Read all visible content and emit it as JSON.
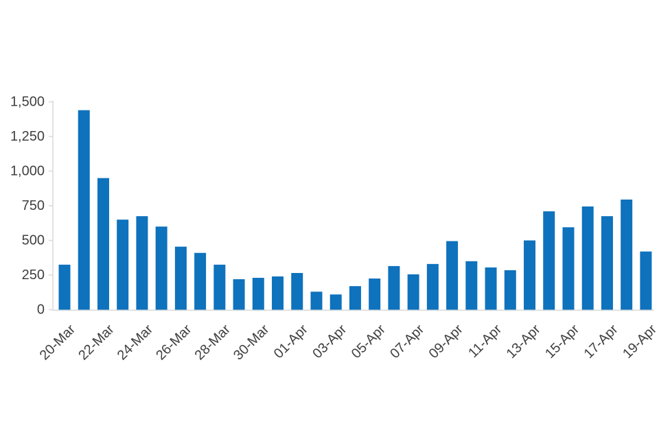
{
  "page": {
    "background_color": "#ffffff"
  },
  "chart_data": {
    "type": "bar",
    "title": "",
    "xlabel": "",
    "ylabel": "",
    "legend_position": "none",
    "grid": false,
    "categories": [
      "20-Mar",
      "21-Mar",
      "22-Mar",
      "23-Mar",
      "24-Mar",
      "25-Mar",
      "26-Mar",
      "27-Mar",
      "28-Mar",
      "29-Mar",
      "30-Mar",
      "31-Mar",
      "01-Apr",
      "02-Apr",
      "03-Apr",
      "04-Apr",
      "05-Apr",
      "06-Apr",
      "07-Apr",
      "08-Apr",
      "09-Apr",
      "10-Apr",
      "11-Apr",
      "12-Apr",
      "13-Apr",
      "14-Apr",
      "15-Apr",
      "16-Apr",
      "17-Apr",
      "18-Apr",
      "19-Apr"
    ],
    "values": [
      325,
      1440,
      950,
      650,
      675,
      600,
      455,
      410,
      325,
      220,
      230,
      240,
      265,
      130,
      110,
      170,
      225,
      315,
      255,
      330,
      495,
      350,
      305,
      285,
      500,
      710,
      595,
      745,
      675,
      795,
      420
    ],
    "x_tick_label_every": 2,
    "x_tick_labels_shown": [
      "20-Mar",
      "22-Mar",
      "24-Mar",
      "26-Mar",
      "28-Mar",
      "30-Mar",
      "01-Apr",
      "03-Apr",
      "05-Apr",
      "07-Apr",
      "09-Apr",
      "11-Apr",
      "13-Apr",
      "15-Apr",
      "17-Apr",
      "19-Apr"
    ],
    "ylim": [
      0,
      1500
    ],
    "y_ticks": [
      {
        "value": 0,
        "label": "0"
      },
      {
        "value": 250,
        "label": "250"
      },
      {
        "value": 500,
        "label": "500"
      },
      {
        "value": 750,
        "label": "750"
      },
      {
        "value": 1000,
        "label": "1,000"
      },
      {
        "value": 1250,
        "label": "1,250"
      },
      {
        "value": 1500,
        "label": "1,500"
      }
    ],
    "bar_color": "#0e72bd",
    "axis_line_color": "#d9d9d9",
    "tick_text_color": "#404040"
  }
}
